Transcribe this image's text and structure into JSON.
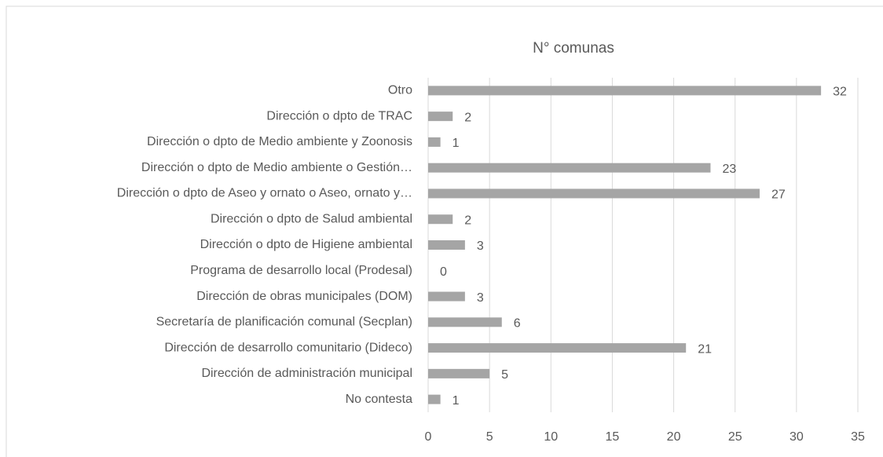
{
  "chart_data": {
    "type": "bar",
    "orientation": "horizontal",
    "title": "N° comunas",
    "categories": [
      "Otro",
      "Dirección o dpto de TRAC",
      "Dirección o dpto de Medio ambiente y Zoonosis",
      "Dirección o dpto de Medio ambiente o Gestión…",
      "Dirección o dpto de Aseo y ornato o Aseo, ornato y…",
      "Dirección o dpto de Salud ambiental",
      "Dirección o dpto de Higiene ambiental",
      "Programa de desarrollo local (Prodesal)",
      "Dirección de obras municipales (DOM)",
      "Secretaría de planificación comunal (Secplan)",
      "Dirección de desarrollo comunitario (Dideco)",
      "Dirección de administración municipal",
      "No contesta"
    ],
    "values": [
      32,
      2,
      1,
      23,
      27,
      2,
      3,
      0,
      3,
      6,
      21,
      5,
      1
    ],
    "color": "#a5a5a5",
    "xlim": [
      0,
      35
    ],
    "xticks": [
      0,
      5,
      10,
      15,
      20,
      25,
      30,
      35
    ],
    "grid": true
  }
}
